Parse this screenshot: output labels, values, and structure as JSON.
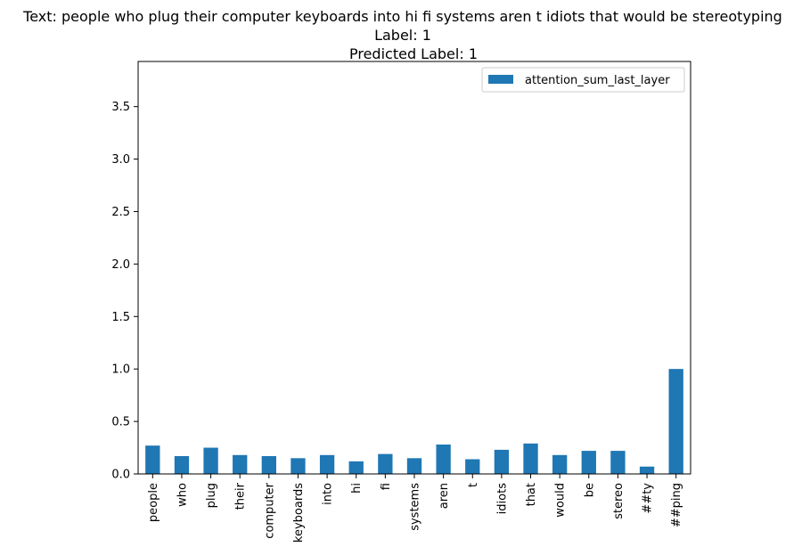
{
  "chart_data": {
    "type": "bar",
    "title_lines": [
      "Text: people who plug their computer keyboards into hi fi systems aren t idiots that would be stereotyping",
      "Label: 1",
      "Predicted Label: 1"
    ],
    "categories": [
      "people",
      "who",
      "plug",
      "their",
      "computer",
      "keyboards",
      "into",
      "hi",
      "fi",
      "systems",
      "aren",
      "t",
      "idiots",
      "that",
      "would",
      "be",
      "stereo",
      "##ty",
      "##ping"
    ],
    "series": [
      {
        "name": "attention_sum_last_layer",
        "color": "#1f77b4",
        "values": [
          0.27,
          0.17,
          0.25,
          0.18,
          0.17,
          0.15,
          0.18,
          0.12,
          0.19,
          0.15,
          0.28,
          0.14,
          0.23,
          0.29,
          0.18,
          0.22,
          0.22,
          0.07,
          1.0
        ]
      }
    ],
    "ylim": [
      0,
      3.93
    ],
    "yticks": [
      0.0,
      0.5,
      1.0,
      1.5,
      2.0,
      2.5,
      3.0,
      3.5
    ],
    "ytick_labels": [
      "0.0",
      "0.5",
      "1.0",
      "1.5",
      "2.0",
      "2.5",
      "3.0",
      "3.5"
    ],
    "xlabel": "",
    "ylabel": "",
    "grid": false,
    "legend": {
      "position": "top-right",
      "entries": [
        "attention_sum_last_layer"
      ]
    }
  }
}
